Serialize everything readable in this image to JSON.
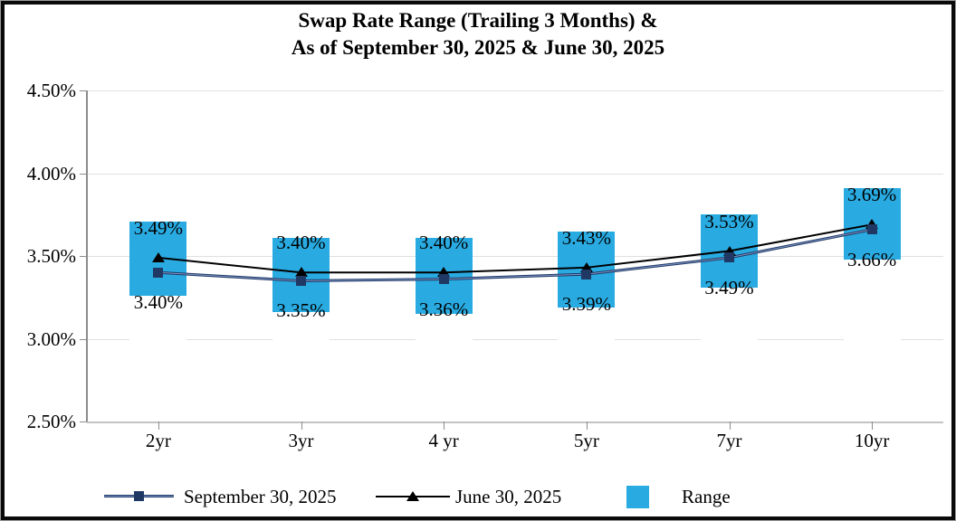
{
  "title": {
    "line1": "Swap Rate Range (Trailing 3 Months) &",
    "line2": "As of September 30, 2025 & June 30, 2025"
  },
  "chart_data": {
    "type": "combo",
    "subtype": "floating-range-bars-with-marker-lines",
    "title": [
      "Swap Rate Range (Trailing 3 Months) &",
      "As of September 30, 2025 & June 30, 2025"
    ],
    "categories": [
      "2yr",
      "3yr",
      "4 yr",
      "5yr",
      "7yr",
      "10yr"
    ],
    "series": [
      {
        "name": "September 30, 2025",
        "type": "line",
        "marker": "square",
        "color": "#1F3864",
        "values": [
          3.4,
          3.35,
          3.36,
          3.39,
          3.49,
          3.66
        ],
        "labels": [
          "3.40%",
          "3.35%",
          "3.36%",
          "3.39%",
          "3.49%",
          "3.66%"
        ],
        "label_position": "below"
      },
      {
        "name": "June 30, 2025",
        "type": "line",
        "marker": "triangle",
        "color": "#000000",
        "values": [
          3.49,
          3.4,
          3.4,
          3.43,
          3.53,
          3.69
        ],
        "labels": [
          "3.49%",
          "3.40%",
          "3.40%",
          "3.43%",
          "3.53%",
          "3.69%"
        ],
        "label_position": "above"
      }
    ],
    "range": {
      "name": "Range",
      "type": "bar",
      "color": "#29ABE2",
      "high": [
        3.71,
        3.61,
        3.61,
        3.65,
        3.75,
        3.91
      ],
      "low": [
        3.26,
        3.16,
        3.15,
        3.19,
        3.31,
        3.48
      ]
    },
    "ylim": [
      2.5,
      4.5
    ],
    "ytick_values": [
      4.5,
      4.0,
      3.5,
      3.0,
      2.5
    ],
    "ytick_labels": [
      "4.50%",
      "4.00%",
      "3.50%",
      "3.00%",
      "2.50%"
    ],
    "grid": true,
    "legend_position": "bottom"
  },
  "colors": {
    "range_bar": "#29ABE2",
    "sep30_line": "#1F3864",
    "sep30_line_core": "#7d94c4",
    "june30_line": "#000000",
    "gridline": "#e0e0e0",
    "axis": "#8c8c8c",
    "text": "#000000"
  }
}
